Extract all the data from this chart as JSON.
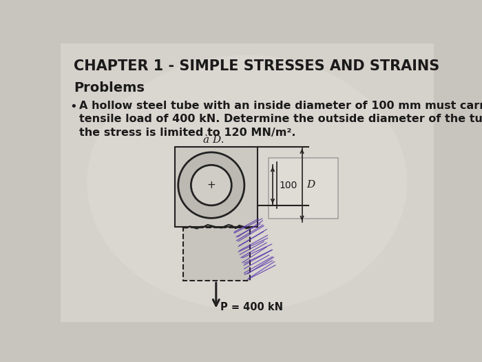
{
  "title": "CHAPTER 1 - SIMPLE STRESSES AND STRAINS",
  "subtitle": "Problems",
  "bullet_text_line1": "A hollow steel tube with an inside diameter of 100 mm must carry a",
  "bullet_text_line2": "tensile load of 400 kN. Determine the outside diameter of the tube if",
  "bullet_text_line3": "the stress is limited to 120 MN/m².",
  "diagram_label_top": "à D.",
  "diagram_label_100": "100",
  "diagram_label_D": "D",
  "diagram_label_P": "P = 400 kN",
  "bg_color": "#c8c4be",
  "page_color": "#e8e5df",
  "text_color": "#1a1a1a",
  "diagram_line_color": "#222222",
  "tube_wall_color": "#b0aca4",
  "dashed_box_fill": "#d0cdc7",
  "scribble_color": "#5533aa"
}
